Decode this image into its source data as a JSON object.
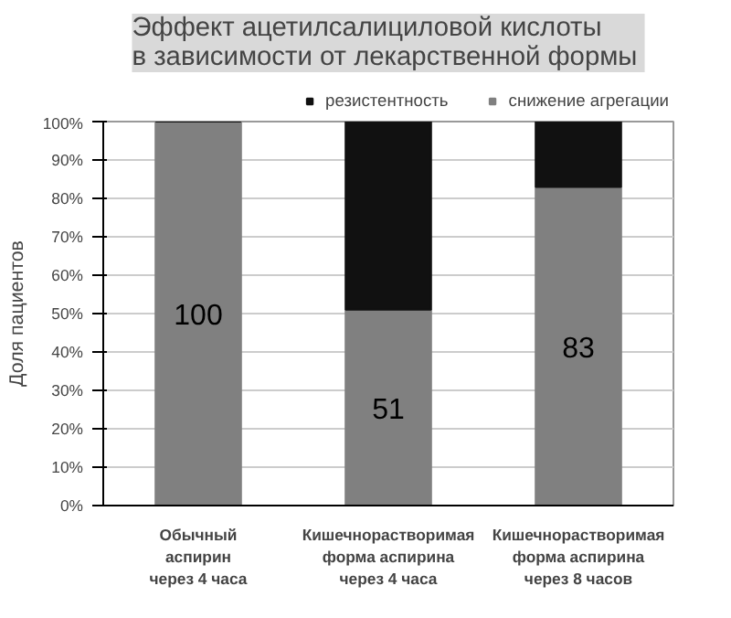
{
  "chart_data": {
    "type": "bar",
    "stacked": true,
    "title": "Эффект ацетилсалициловой кислоты\nв зависимости  от лекарственной формы",
    "ylabel": "Доля пациентов",
    "categories": [
      "Обычный\nаспирин\nчерез 4 часа",
      "Кишечнорастворимая\nформа аспирина\nчерез 4 часа",
      "Кишечнорастворимая\nформа аспирина\nчерез 8 часов"
    ],
    "series": [
      {
        "name": "снижение агрегации",
        "color": "#808080",
        "values": [
          100,
          51,
          83
        ],
        "value_labels": [
          "100",
          "51",
          "83"
        ]
      },
      {
        "name": "резистентность",
        "color": "#111111",
        "values": [
          0,
          49,
          17
        ]
      }
    ],
    "ylim": [
      0,
      100
    ],
    "yticks": [
      {
        "value": 0,
        "label": "0%"
      },
      {
        "value": 10,
        "label": "10%"
      },
      {
        "value": 20,
        "label": "20%"
      },
      {
        "value": 30,
        "label": "30%"
      },
      {
        "value": 40,
        "label": "40%"
      },
      {
        "value": 50,
        "label": "50%"
      },
      {
        "value": 60,
        "label": "60%"
      },
      {
        "value": 70,
        "label": "70%"
      },
      {
        "value": 80,
        "label": "80%"
      },
      {
        "value": 90,
        "label": "90%"
      },
      {
        "value": 100,
        "label": "100%"
      }
    ],
    "grid": "y",
    "legend": "top"
  }
}
